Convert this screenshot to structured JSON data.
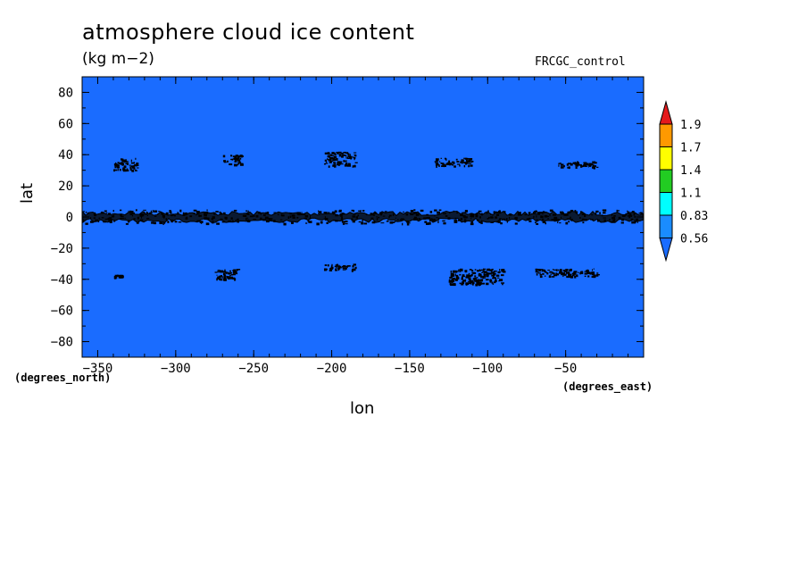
{
  "chart_data": {
    "type": "heatmap",
    "title": "atmosphere cloud ice content",
    "units": "(kg m−2)",
    "run_label": "FRCGC_control",
    "xlabel": "lon",
    "ylabel": "lat",
    "xunit_label": "(degrees_east)",
    "yunit_label": "(degrees_north)",
    "xlim": [
      -360,
      0
    ],
    "ylim": [
      -90,
      90
    ],
    "x_ticks": [
      -350,
      -300,
      -250,
      -200,
      -150,
      -100,
      -50
    ],
    "y_ticks": [
      80,
      60,
      40,
      20,
      0,
      -20,
      -40,
      -60,
      -80
    ],
    "x_tick_labels": [
      "−350",
      "−300",
      "−250",
      "−200",
      "−150",
      "−100",
      "−50"
    ],
    "y_tick_labels": [
      "80",
      "60",
      "40",
      "20",
      "0",
      "−20",
      "−40",
      "−60",
      "−80"
    ],
    "field_fill_color": "#1a6cff",
    "contour_color": "#000000",
    "colorbar": {
      "levels": [
        "1.9",
        "1.7",
        "1.4",
        "1.1",
        "0.83",
        "0.56"
      ],
      "colors": [
        "#e41a1c",
        "#ff9900",
        "#ffff00",
        "#22cc22",
        "#00ffff",
        "#1a8cff",
        "#1a6cff"
      ]
    },
    "features": [
      {
        "lon_range": [
          -360,
          0
        ],
        "lat_range": [
          -4,
          5
        ]
      },
      {
        "lon_range": [
          -340,
          -325
        ],
        "lat_range": [
          30,
          38
        ]
      },
      {
        "lon_range": [
          -270,
          -258
        ],
        "lat_range": [
          34,
          40
        ]
      },
      {
        "lon_range": [
          -205,
          -185
        ],
        "lat_range": [
          33,
          42
        ]
      },
      {
        "lon_range": [
          -135,
          -110
        ],
        "lat_range": [
          33,
          38
        ]
      },
      {
        "lon_range": [
          -55,
          -30
        ],
        "lat_range": [
          32,
          36
        ]
      },
      {
        "lon_range": [
          -340,
          -335
        ],
        "lat_range": [
          -39,
          -37
        ]
      },
      {
        "lon_range": [
          -275,
          -260
        ],
        "lat_range": [
          -40,
          -33
        ]
      },
      {
        "lon_range": [
          -205,
          -185
        ],
        "lat_range": [
          -34,
          -30
        ]
      },
      {
        "lon_range": [
          -125,
          -90
        ],
        "lat_range": [
          -43,
          -33
        ]
      },
      {
        "lon_range": [
          -70,
          -30
        ],
        "lat_range": [
          -38,
          -33
        ]
      }
    ]
  }
}
